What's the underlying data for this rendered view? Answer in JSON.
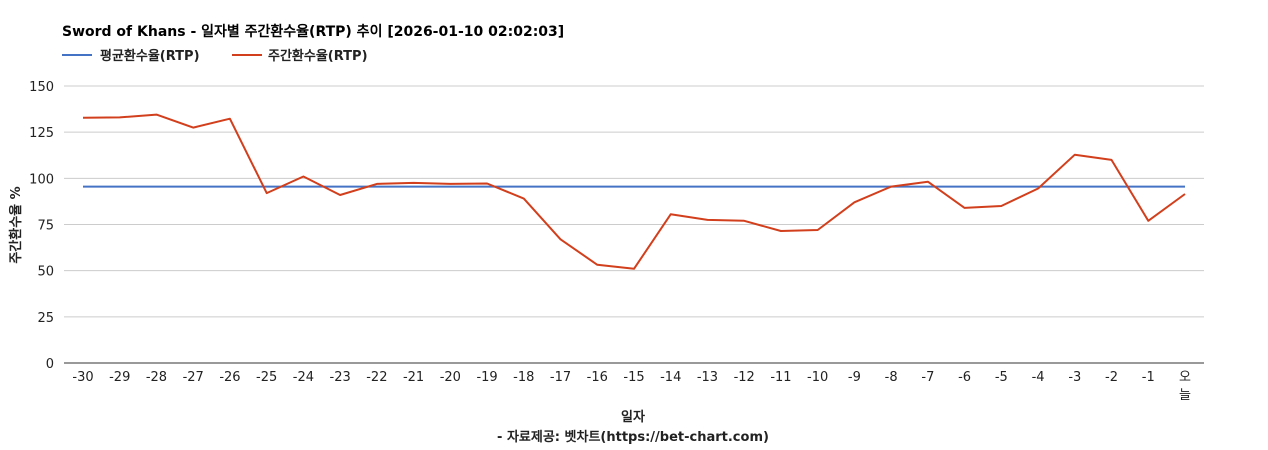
{
  "chart_data": {
    "type": "line",
    "title": "Sword of Khans - 일자별 주간환수율(RTP) 추이 [2026-01-10 02:02:03]",
    "xlabel": "일자",
    "ylabel": "주간환수율 %",
    "credit": "- 자료제공: 벳차트(https://bet-chart.com)",
    "legend_position": "top-left",
    "ylim": [
      0,
      150
    ],
    "yticks": [
      "0",
      "25",
      "50",
      "75",
      "100",
      "125",
      "150"
    ],
    "categories": [
      "-30",
      "-29",
      "-28",
      "-27",
      "-26",
      "-25",
      "-24",
      "-23",
      "-22",
      "-21",
      "-20",
      "-19",
      "-18",
      "-17",
      "-16",
      "-15",
      "-14",
      "-13",
      "-12",
      "-11",
      "-10",
      "-9",
      "-8",
      "-7",
      "-6",
      "-5",
      "-4",
      "-3",
      "-2",
      "-1",
      "오늘"
    ],
    "series": [
      {
        "name": "평균환수율(RTP)",
        "color": "#4472c4",
        "values": [
          95.5,
          95.5,
          95.5,
          95.5,
          95.5,
          95.5,
          95.5,
          95.5,
          95.5,
          95.5,
          95.5,
          95.5,
          95.5,
          95.5,
          95.5,
          95.5,
          95.5,
          95.5,
          95.5,
          95.5,
          95.5,
          95.5,
          95.5,
          95.5,
          95.5,
          95.5,
          95.5,
          95.5,
          95.5,
          95.5,
          95.5
        ]
      },
      {
        "name": "주간환수율(RTP)",
        "color": "#d23f1c",
        "values": [
          132.8,
          133.0,
          134.5,
          127.5,
          132.3,
          92.0,
          101.0,
          91.0,
          97.0,
          97.5,
          97.0,
          97.2,
          89.0,
          67.0,
          53.2,
          51.0,
          80.5,
          77.5,
          77.0,
          71.5,
          72.0,
          87.0,
          95.5,
          98.2,
          84.0,
          85.0,
          94.5,
          112.8,
          110.0,
          77.0,
          91.5
        ]
      }
    ]
  }
}
